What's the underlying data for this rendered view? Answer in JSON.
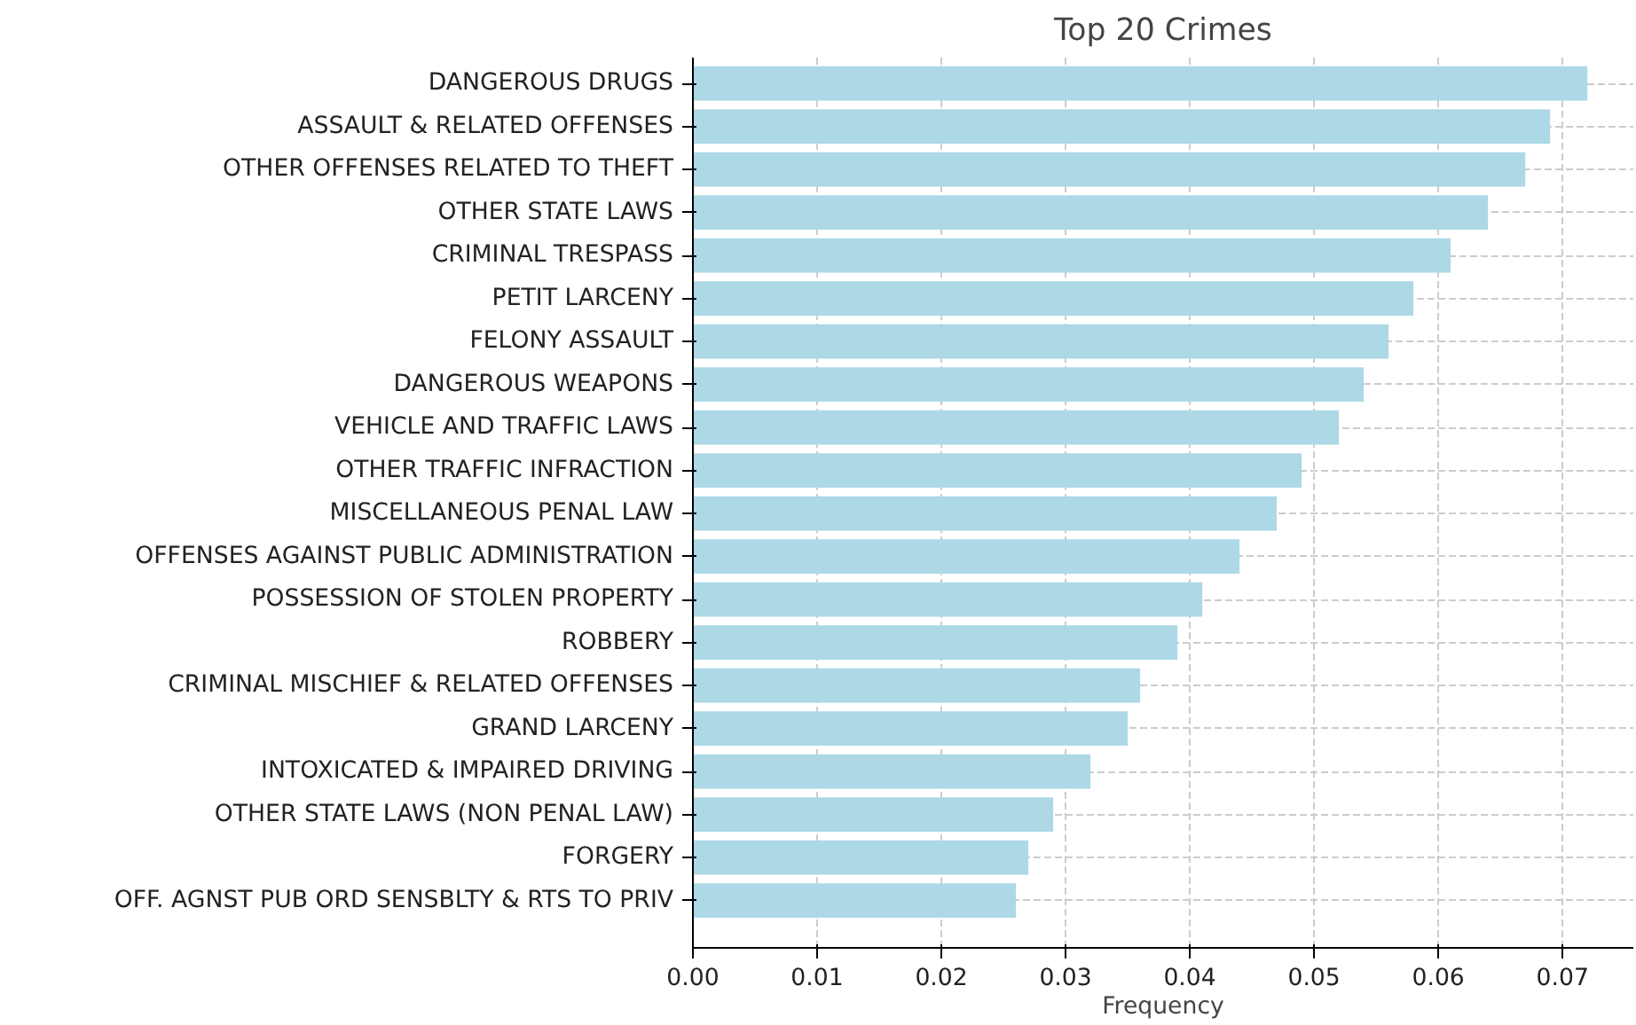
{
  "chart_data": {
    "type": "bar",
    "orientation": "horizontal",
    "title": "Top 20 Crimes",
    "xlabel": "Frequency",
    "categories": [
      "DANGEROUS DRUGS",
      "ASSAULT & RELATED OFFENSES",
      "OTHER OFFENSES RELATED TO THEFT",
      "OTHER STATE LAWS",
      "CRIMINAL TRESPASS",
      "PETIT LARCENY",
      "FELONY ASSAULT",
      "DANGEROUS WEAPONS",
      "VEHICLE AND TRAFFIC LAWS",
      "OTHER TRAFFIC INFRACTION",
      "MISCELLANEOUS PENAL LAW",
      "OFFENSES AGAINST PUBLIC ADMINISTRATION",
      "POSSESSION OF STOLEN PROPERTY",
      "ROBBERY",
      "CRIMINAL MISCHIEF & RELATED OFFENSES",
      "GRAND LARCENY",
      "INTOXICATED & IMPAIRED DRIVING",
      "OTHER STATE LAWS (NON PENAL LAW)",
      "FORGERY",
      "OFF. AGNST PUB ORD SENSBLTY & RTS TO PRIV"
    ],
    "values": [
      0.072,
      0.069,
      0.067,
      0.064,
      0.061,
      0.058,
      0.056,
      0.054,
      0.052,
      0.049,
      0.047,
      0.044,
      0.041,
      0.039,
      0.036,
      0.035,
      0.032,
      0.029,
      0.027,
      0.026
    ],
    "color": "#add8e6",
    "xlim": [
      0,
      0.0757
    ],
    "xticks": [
      {
        "value": 0,
        "label": "0.00"
      },
      {
        "value": 0.01,
        "label": "0.01"
      },
      {
        "value": 0.02,
        "label": "0.02"
      },
      {
        "value": 0.03,
        "label": "0.03"
      },
      {
        "value": 0.04,
        "label": "0.04"
      },
      {
        "value": 0.05,
        "label": "0.05"
      },
      {
        "value": 0.06,
        "label": "0.06"
      },
      {
        "value": 0.07,
        "label": "0.07"
      }
    ],
    "grid": true
  }
}
